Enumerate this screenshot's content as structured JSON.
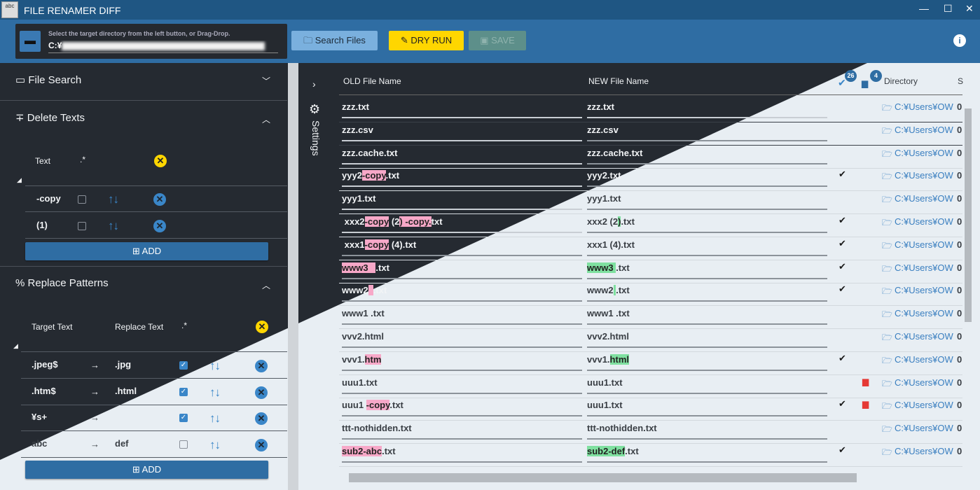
{
  "app": {
    "title": "FILE RENAMER DIFF",
    "icon_text": "abc",
    "window_buttons": [
      "—",
      "☐",
      "✕"
    ]
  },
  "toolbar": {
    "dir_hint": "Select the target directory from the left button, or Drag-Drop.",
    "dir_value": "C:¥",
    "search_label": "Search Files",
    "dryrun_label": "DRY RUN",
    "save_label": "SAVE",
    "info": "i"
  },
  "sidebar": {
    "file_search": "File Search",
    "delete_texts": {
      "title": "Delete Texts",
      "col_text": "Text",
      "regex": ".*",
      "add": "ADD",
      "items": [
        {
          "text": "-copy",
          "regex": false
        },
        {
          "text": "(1)",
          "regex": false
        }
      ]
    },
    "replace_patterns": {
      "title": "Replace Patterns",
      "col_target": "Target Text",
      "col_replace": "Replace Text",
      "regex": ".*",
      "add": "ADD",
      "items": [
        {
          "target": ".jpeg$",
          "replace": ".jpg",
          "regex": true
        },
        {
          "target": ".htm$",
          "replace": ".html",
          "regex": true
        },
        {
          "target": "¥s+",
          "replace": "",
          "regex": true
        },
        {
          "target": "abc",
          "replace": "def",
          "regex": false
        }
      ]
    }
  },
  "settings_label": "Settings",
  "table": {
    "col_old": "OLD File Name",
    "col_new": "NEW File Name",
    "col_dir": "Directory",
    "col_s": "S",
    "check_count": "26",
    "folder_count": "4",
    "rows": [
      {
        "old": [
          [
            "zzz.txt",
            ""
          ]
        ],
        "new": [
          [
            "zzz.txt",
            ""
          ]
        ],
        "check": false,
        "red": false,
        "dir": "C:¥Users¥OW",
        "s": "0"
      },
      {
        "old": [
          [
            "zzz.csv",
            ""
          ]
        ],
        "new": [
          [
            "zzz.csv",
            ""
          ]
        ],
        "check": false,
        "red": false,
        "dir": "C:¥Users¥OW",
        "s": "0"
      },
      {
        "old": [
          [
            "zzz.cache.txt",
            ""
          ]
        ],
        "new": [
          [
            "zzz.cache.txt",
            ""
          ]
        ],
        "check": false,
        "red": false,
        "dir": "C:¥Users¥OW",
        "s": "0"
      },
      {
        "old": [
          [
            "yyy2",
            ""
          ],
          [
            "-copy",
            "r"
          ],
          [
            ".txt",
            ""
          ]
        ],
        "new": [
          [
            "yyy2.txt",
            ""
          ]
        ],
        "check": true,
        "red": false,
        "dir": "C:¥Users¥OW",
        "s": "0"
      },
      {
        "old": [
          [
            "yyy1.txt",
            ""
          ]
        ],
        "new": [
          [
            "yyy1.txt",
            ""
          ]
        ],
        "check": false,
        "red": false,
        "dir": "C:¥Users¥OW",
        "s": "0"
      },
      {
        "old": [
          [
            " xxx2",
            ""
          ],
          [
            "-copy",
            "r"
          ],
          [
            " (2",
            ""
          ],
          [
            ")",
            "r"
          ],
          [
            " -copy.",
            "r"
          ],
          [
            "txt",
            ""
          ]
        ],
        "new": [
          [
            "xxx2 (2",
            ""
          ],
          [
            ")",
            "g"
          ],
          [
            ".txt",
            ""
          ]
        ],
        "check": true,
        "red": false,
        "dir": "C:¥Users¥OW",
        "s": "0"
      },
      {
        "old": [
          [
            " xxx1",
            ""
          ],
          [
            "-copy",
            "r"
          ],
          [
            " (4).txt",
            ""
          ]
        ],
        "new": [
          [
            "xxx1 (4).txt",
            ""
          ]
        ],
        "check": true,
        "red": false,
        "dir": "C:¥Users¥OW",
        "s": "0"
      },
      {
        "old": [
          [
            "www3   ",
            "r"
          ],
          [
            ".txt",
            ""
          ]
        ],
        "new": [
          [
            "www3 ",
            "g"
          ],
          [
            ".txt",
            ""
          ]
        ],
        "check": true,
        "red": false,
        "dir": "C:¥Users¥OW",
        "s": "0"
      },
      {
        "old": [
          [
            "www2",
            ""
          ],
          [
            "  ",
            "r"
          ],
          [
            ".txt",
            ""
          ]
        ],
        "new": [
          [
            "www2",
            ""
          ],
          [
            " ",
            "g"
          ],
          [
            ".txt",
            ""
          ]
        ],
        "check": true,
        "red": false,
        "dir": "C:¥Users¥OW",
        "s": "0"
      },
      {
        "old": [
          [
            "www1 .txt",
            ""
          ]
        ],
        "new": [
          [
            "www1 .txt",
            ""
          ]
        ],
        "check": false,
        "red": false,
        "dir": "C:¥Users¥OW",
        "s": "0"
      },
      {
        "old": [
          [
            "vvv2.html",
            ""
          ]
        ],
        "new": [
          [
            "vvv2.html",
            ""
          ]
        ],
        "check": false,
        "red": false,
        "dir": "C:¥Users¥OW",
        "s": "0"
      },
      {
        "old": [
          [
            "vvv1.",
            ""
          ],
          [
            "htm",
            "r"
          ]
        ],
        "new": [
          [
            "vvv1.",
            ""
          ],
          [
            "html",
            "g"
          ]
        ],
        "check": true,
        "red": false,
        "dir": "C:¥Users¥OW",
        "s": "0"
      },
      {
        "old": [
          [
            "uuu1.txt",
            ""
          ]
        ],
        "new": [
          [
            "uuu1.txt",
            ""
          ]
        ],
        "check": false,
        "red": true,
        "dir": "C:¥Users¥OW",
        "s": "0"
      },
      {
        "old": [
          [
            "uuu1 ",
            ""
          ],
          [
            "-copy",
            "r"
          ],
          [
            ".txt",
            ""
          ]
        ],
        "new": [
          [
            "uuu1.txt",
            ""
          ]
        ],
        "check": true,
        "red": true,
        "dir": "C:¥Users¥OW",
        "s": "0"
      },
      {
        "old": [
          [
            "ttt-nothidden.txt",
            ""
          ]
        ],
        "new": [
          [
            "ttt-nothidden.txt",
            ""
          ]
        ],
        "check": false,
        "red": false,
        "dir": "C:¥Users¥OW",
        "s": "0"
      },
      {
        "old": [
          [
            "sub2-abc",
            "r"
          ],
          [
            ".txt",
            ""
          ]
        ],
        "new": [
          [
            "sub2-def",
            "g"
          ],
          [
            ".txt",
            ""
          ]
        ],
        "check": true,
        "red": false,
        "dir": "C:¥Users¥OW",
        "s": "0"
      }
    ]
  },
  "colors": {
    "accent": "#2f6da3",
    "dryrun": "#ffd600",
    "dark_bg": "#252a31",
    "light_bg": "#e8eef3",
    "removed": "#f7a8c8",
    "added": "#7fe0a0",
    "red_folder": "#e53935"
  }
}
